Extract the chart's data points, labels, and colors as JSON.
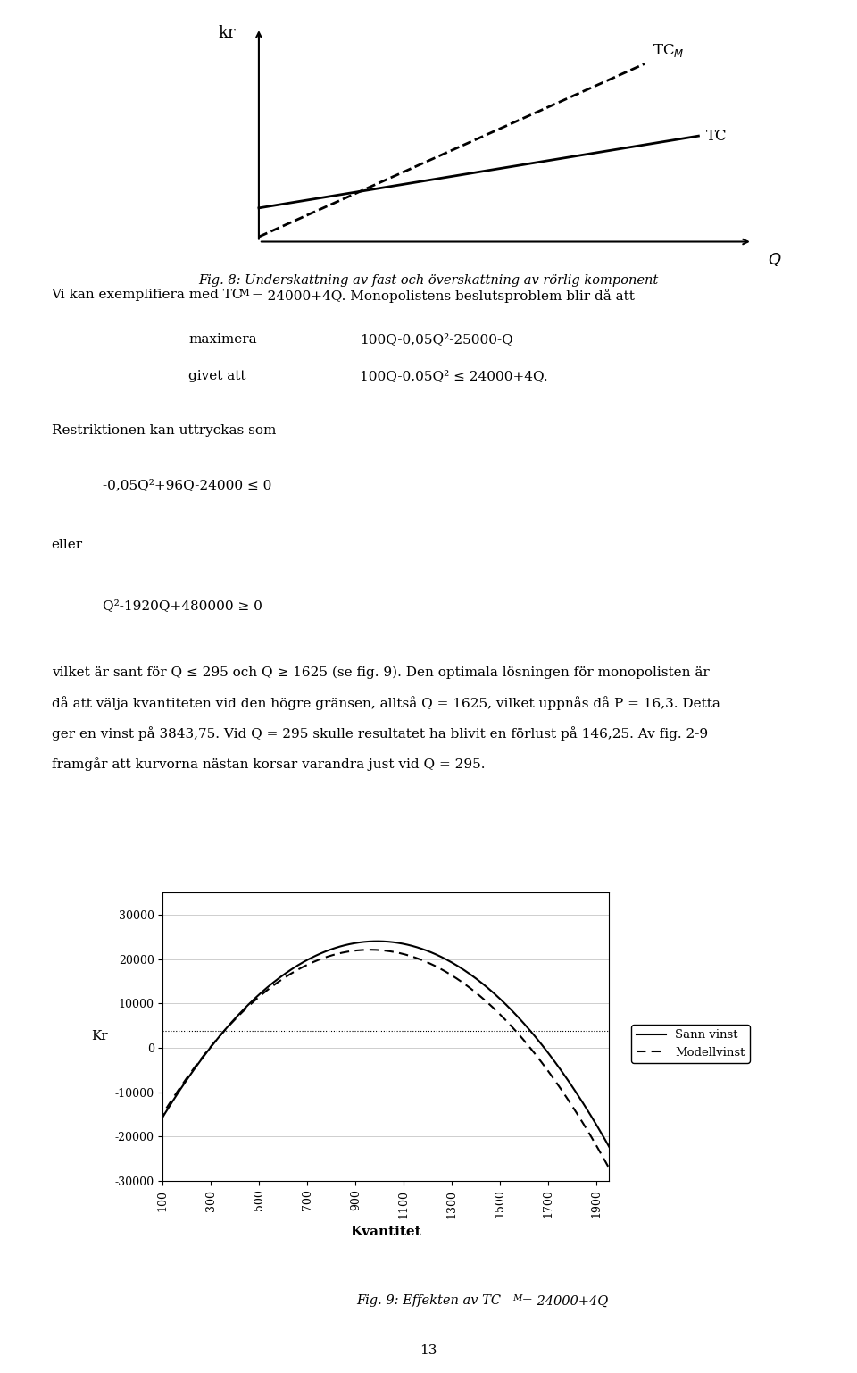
{
  "fig8_title": "Fig. 8: Underskattning av fast och överskattning av rörlig komponent",
  "fig9_title_start": "Fig. 9: Effekten av TC",
  "fig9_title_end": " = 24000+4Q",
  "ylabel_fig9": "Kr",
  "xlabel_fig9": "Kvantitet",
  "legend_sann": "Sann vinst",
  "legend_modell": "Modellvinst",
  "yticks": [
    -30000,
    -20000,
    -10000,
    0,
    10000,
    20000,
    30000
  ],
  "background_color": "#ffffff",
  "page_number": "13"
}
